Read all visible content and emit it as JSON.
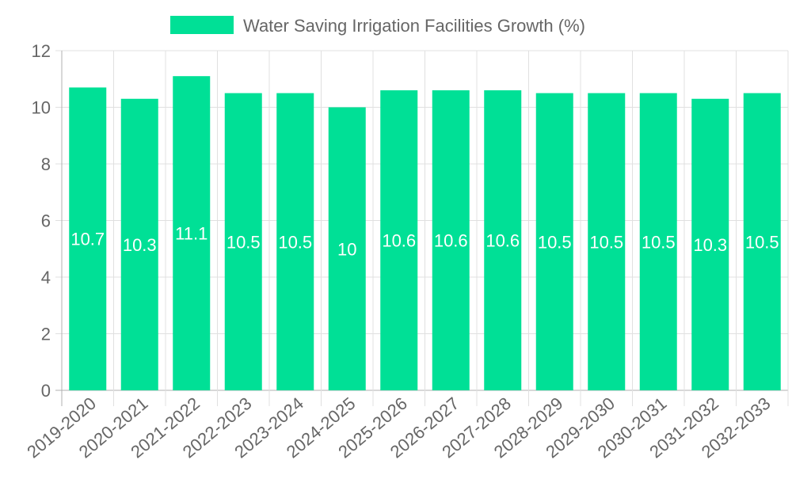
{
  "chart_data": {
    "type": "bar",
    "title": "",
    "legend": {
      "label": "Water Saving Irrigation Facilities Growth (%)",
      "position": "top"
    },
    "categories": [
      "2019-2020",
      "2020-2021",
      "2021-2022",
      "2022-2023",
      "2023-2024",
      "2024-2025",
      "2025-2026",
      "2026-2027",
      "2027-2028",
      "2028-2029",
      "2029-2030",
      "2030-2031",
      "2031-2032",
      "2032-2033"
    ],
    "series": [
      {
        "name": "Water Saving Irrigation Facilities Growth (%)",
        "values": [
          10.7,
          10.3,
          11.1,
          10.5,
          10.5,
          10,
          10.6,
          10.6,
          10.6,
          10.5,
          10.5,
          10.5,
          10.3,
          10.5
        ]
      }
    ],
    "ylim": [
      0,
      12
    ],
    "yticks": [
      0,
      2,
      4,
      6,
      8,
      10,
      12
    ],
    "xlabel": "",
    "ylabel": "",
    "grid": true,
    "colors": {
      "bar": "#00E096",
      "text": "#666666",
      "grid": "#e0e0e0",
      "axis": "#b0b0b0",
      "label": "#ffffff"
    }
  }
}
